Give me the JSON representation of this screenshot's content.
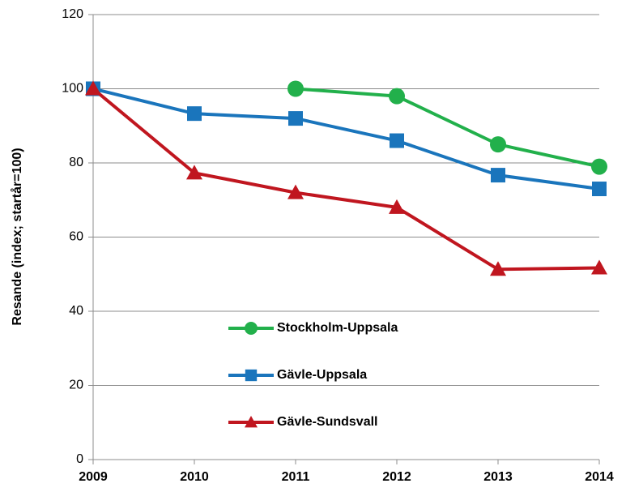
{
  "chart_data": {
    "type": "line",
    "y_label": "Resande (index; startår=100)",
    "x": [
      2009,
      2010,
      2011,
      2012,
      2013,
      2014
    ],
    "xlim": [
      2009,
      2014
    ],
    "xticks": [
      2009,
      2010,
      2011,
      2012,
      2013,
      2014
    ],
    "ylim": [
      0,
      120
    ],
    "yticks": [
      0,
      20,
      40,
      60,
      80,
      100,
      120
    ],
    "grid": true,
    "series": [
      {
        "name": "Stockholm-Uppsala",
        "color": "#22b04b",
        "marker": "circle",
        "values": [
          null,
          null,
          100,
          98,
          85,
          79
        ]
      },
      {
        "name": "Gävle-Uppsala",
        "color": "#1a75bc",
        "marker": "square",
        "values": [
          100,
          93.3,
          92,
          86,
          76.7,
          73
        ]
      },
      {
        "name": "Gävle-Sundsvall",
        "color": "#c0161f",
        "marker": "triangle",
        "values": [
          100,
          77.3,
          72,
          68,
          51.3,
          51.7
        ]
      }
    ]
  }
}
